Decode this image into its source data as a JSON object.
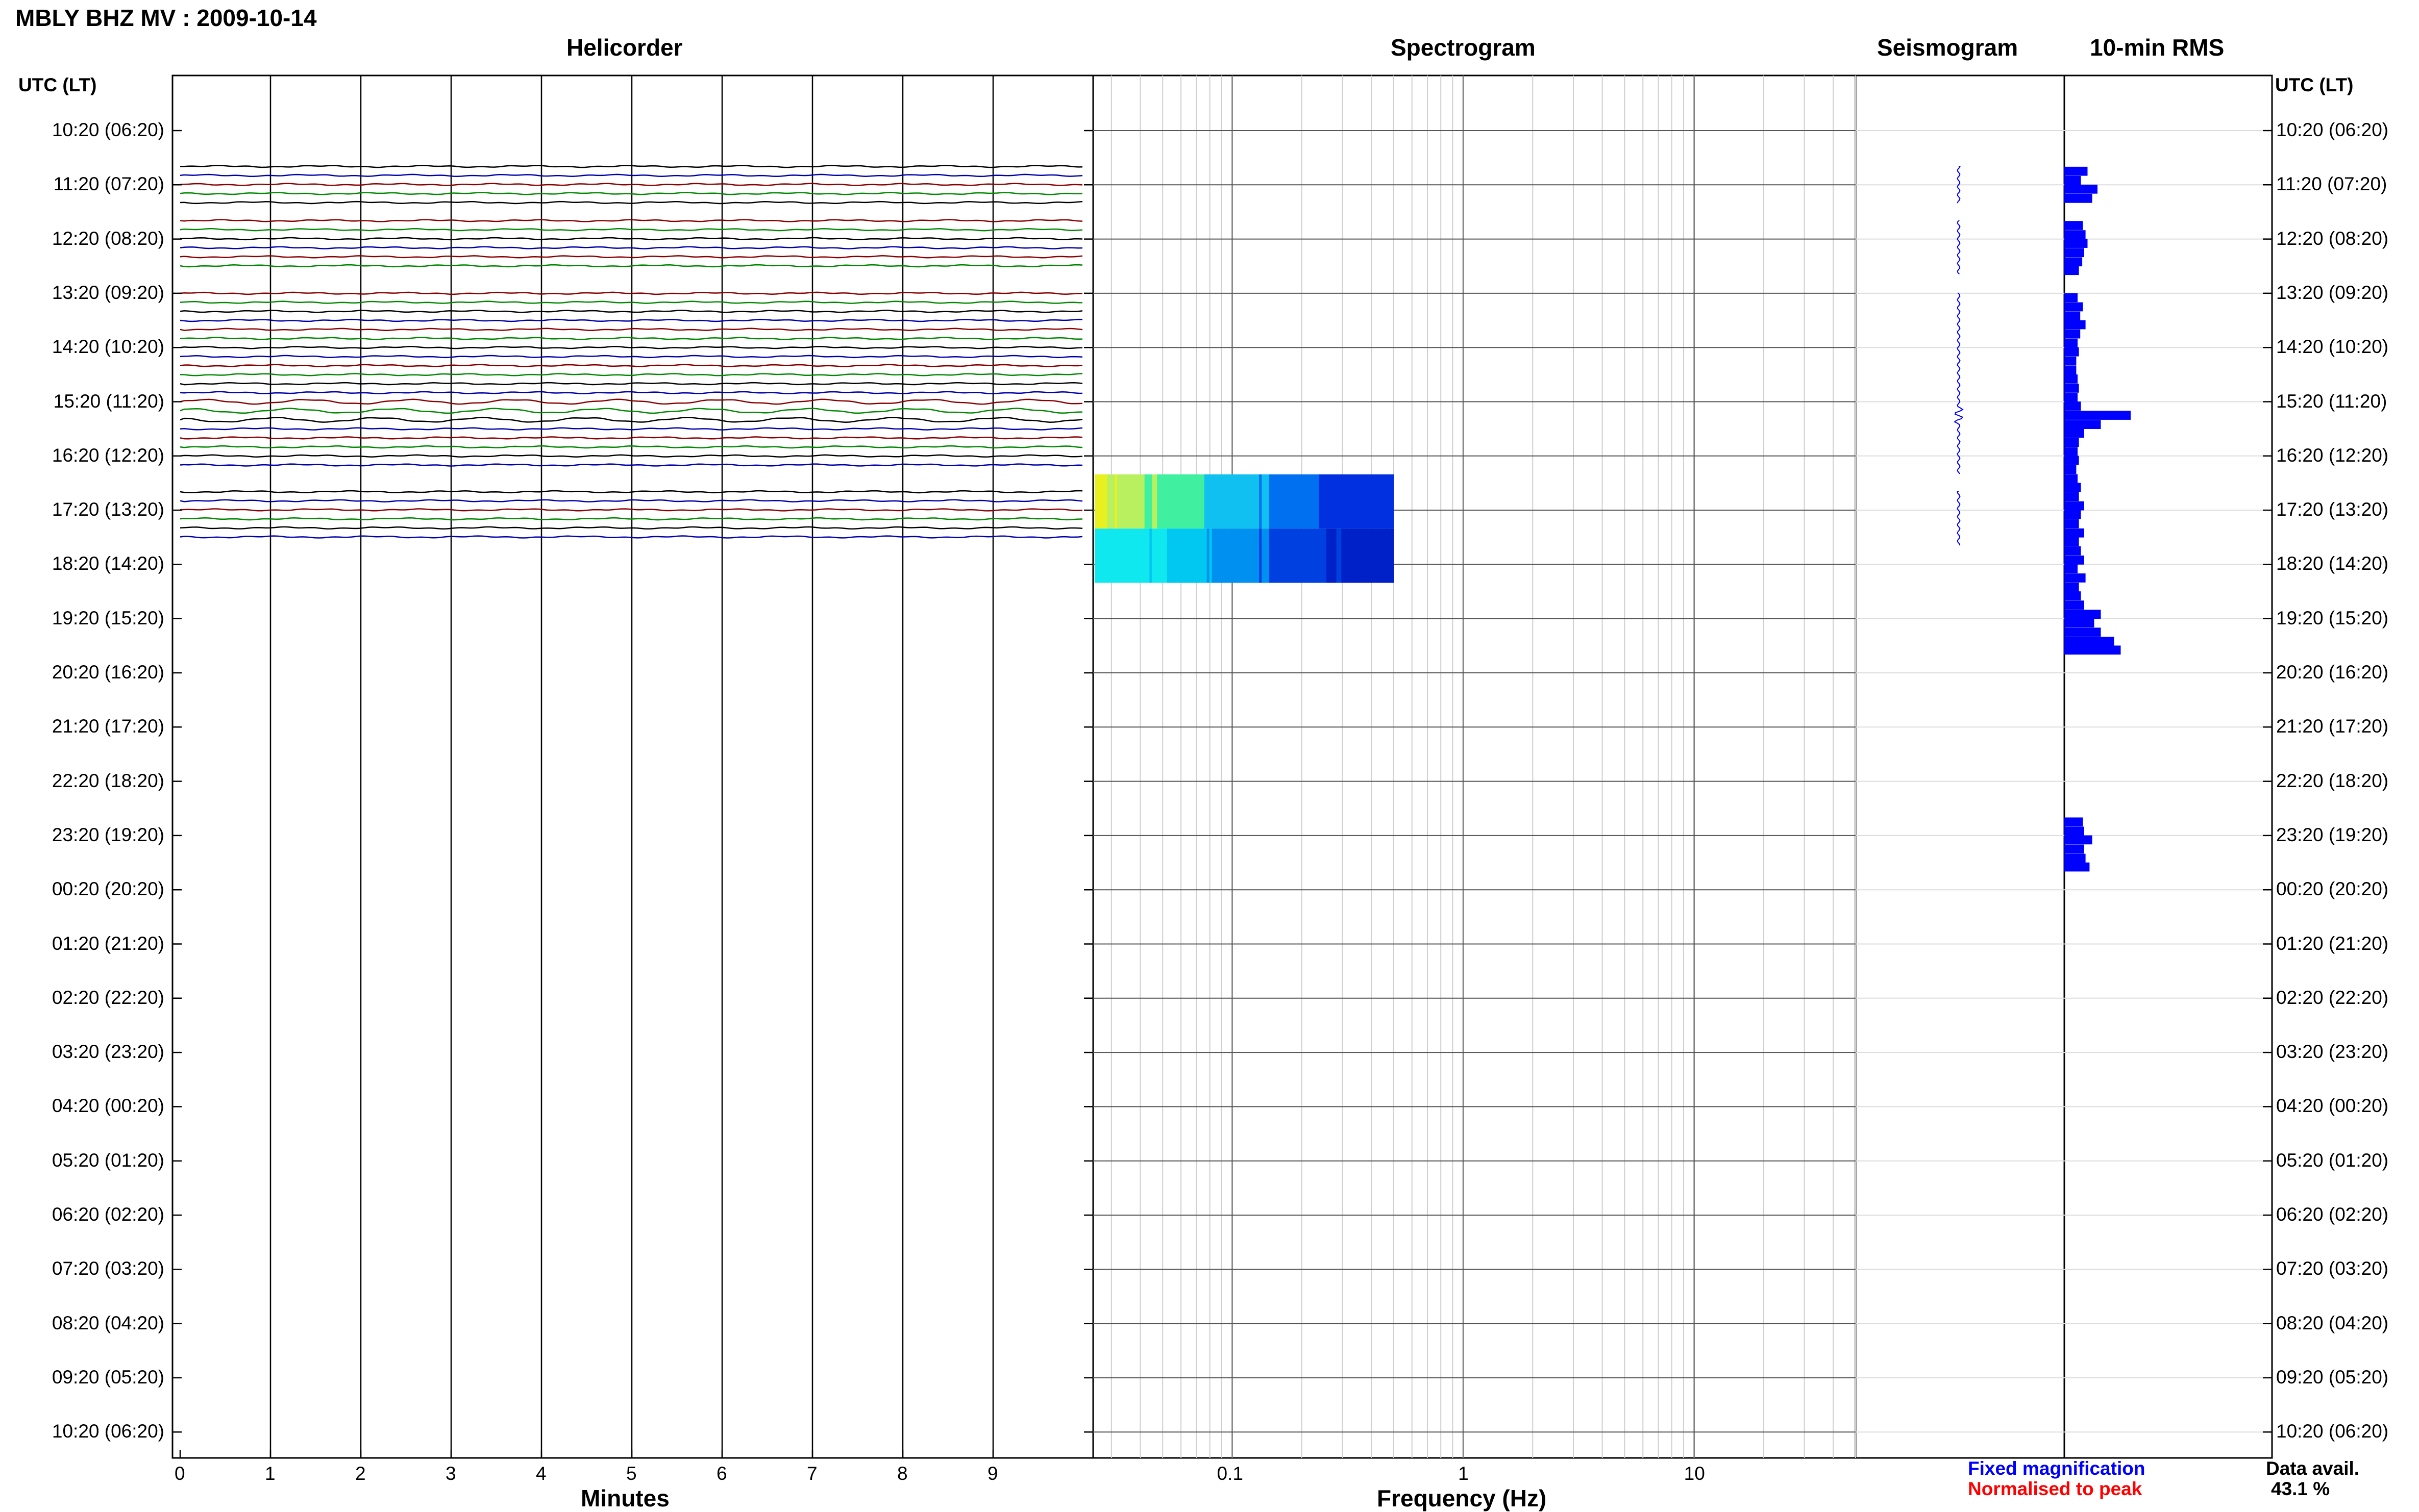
{
  "header": {
    "title": "MBLY BHZ MV : 2009-10-14",
    "panel_titles": {
      "helicorder": "Helicorder",
      "spectrogram": "Spectrogram",
      "seismogram": "Seismogram",
      "rms": "10-min RMS"
    },
    "left_axis_label": "UTC (LT)",
    "right_axis_label": "UTC (LT)"
  },
  "footer": {
    "helicorder_xlabel": "Minutes",
    "spectrogram_xlabel": "Frequency (Hz)",
    "legend_fixed": "Fixed magnification",
    "legend_normalised": "Normalised to peak",
    "data_avail_label": "Data avail.",
    "data_avail_value": "43.1 %"
  },
  "colors": {
    "fixed_magnification": "#0000ff",
    "normalised_to_peak": "#ff0000",
    "trace_colors": [
      "#000000",
      "#0000aa",
      "#880000",
      "#008800"
    ],
    "rms_bar": "#0000ff"
  },
  "chart_data": {
    "type": "helicorder",
    "time_labels": [
      "10:20 (06:20)",
      "11:20 (07:20)",
      "12:20 (08:20)",
      "13:20 (09:20)",
      "14:20 (10:20)",
      "15:20 (11:20)",
      "16:20 (12:20)",
      "17:20 (13:20)",
      "18:20 (14:20)",
      "19:20 (15:20)",
      "20:20 (16:20)",
      "21:20 (17:20)",
      "22:20 (18:20)",
      "23:20 (19:20)",
      "00:20 (20:20)",
      "01:20 (21:20)",
      "02:20 (22:20)",
      "03:20 (23:20)",
      "04:20 (00:20)",
      "05:20 (01:20)",
      "06:20 (02:20)",
      "07:20 (03:20)",
      "08:20 (04:20)",
      "09:20 (05:20)",
      "10:20 (06:20)"
    ],
    "helicorder_xticks": [
      "0",
      "1",
      "2",
      "3",
      "4",
      "5",
      "6",
      "7",
      "8",
      "9"
    ],
    "helicorder_xrange_min": [
      0,
      10
    ],
    "spectrogram_xticks": [
      "0.1",
      "1",
      "10"
    ],
    "spectrogram_xrange_hz": [
      0.025,
      50
    ],
    "spectrogram_xscale": "log",
    "data_segments_hours": [
      [
        0.66,
        1.34
      ],
      [
        1.66,
        2.66
      ],
      [
        3.0,
        6.34
      ],
      [
        6.66,
        7.66
      ]
    ],
    "spectrogram_blocks": [
      {
        "start_hour": 6.34,
        "end_hour": 7.34,
        "level": "high"
      },
      {
        "start_hour": 7.34,
        "end_hour": 8.34,
        "level": "medium"
      }
    ],
    "rms_series": {
      "unit": "relative",
      "bins": [
        {
          "hour": 0.75,
          "value": 0.35
        },
        {
          "hour": 0.92,
          "value": 0.25
        },
        {
          "hour": 1.08,
          "value": 0.5
        },
        {
          "hour": 1.25,
          "value": 0.42
        },
        {
          "hour": 1.75,
          "value": 0.28
        },
        {
          "hour": 1.92,
          "value": 0.32
        },
        {
          "hour": 2.08,
          "value": 0.35
        },
        {
          "hour": 2.25,
          "value": 0.3
        },
        {
          "hour": 2.42,
          "value": 0.27
        },
        {
          "hour": 2.58,
          "value": 0.22
        },
        {
          "hour": 3.08,
          "value": 0.2
        },
        {
          "hour": 3.25,
          "value": 0.28
        },
        {
          "hour": 3.42,
          "value": 0.24
        },
        {
          "hour": 3.58,
          "value": 0.32
        },
        {
          "hour": 3.75,
          "value": 0.24
        },
        {
          "hour": 3.92,
          "value": 0.2
        },
        {
          "hour": 4.08,
          "value": 0.22
        },
        {
          "hour": 4.25,
          "value": 0.18
        },
        {
          "hour": 4.42,
          "value": 0.18
        },
        {
          "hour": 4.58,
          "value": 0.2
        },
        {
          "hour": 4.75,
          "value": 0.22
        },
        {
          "hour": 4.92,
          "value": 0.2
        },
        {
          "hour": 5.08,
          "value": 0.25
        },
        {
          "hour": 5.25,
          "value": 1.0
        },
        {
          "hour": 5.42,
          "value": 0.55
        },
        {
          "hour": 5.58,
          "value": 0.3
        },
        {
          "hour": 5.75,
          "value": 0.22
        },
        {
          "hour": 5.92,
          "value": 0.2
        },
        {
          "hour": 6.08,
          "value": 0.22
        },
        {
          "hour": 6.25,
          "value": 0.18
        },
        {
          "hour": 6.42,
          "value": 0.2
        },
        {
          "hour": 6.58,
          "value": 0.25
        },
        {
          "hour": 6.75,
          "value": 0.22
        },
        {
          "hour": 6.92,
          "value": 0.3
        },
        {
          "hour": 7.08,
          "value": 0.25
        },
        {
          "hour": 7.25,
          "value": 0.22
        },
        {
          "hour": 7.42,
          "value": 0.3
        },
        {
          "hour": 7.58,
          "value": 0.22
        },
        {
          "hour": 7.75,
          "value": 0.25
        },
        {
          "hour": 7.92,
          "value": 0.3
        },
        {
          "hour": 8.08,
          "value": 0.2
        },
        {
          "hour": 8.25,
          "value": 0.32
        },
        {
          "hour": 8.42,
          "value": 0.22
        },
        {
          "hour": 8.58,
          "value": 0.25
        },
        {
          "hour": 8.75,
          "value": 0.3
        },
        {
          "hour": 8.92,
          "value": 0.55
        },
        {
          "hour": 9.08,
          "value": 0.45
        },
        {
          "hour": 9.25,
          "value": 0.55
        },
        {
          "hour": 9.42,
          "value": 0.75
        },
        {
          "hour": 9.58,
          "value": 0.85
        },
        {
          "hour": 12.75,
          "value": 0.28
        },
        {
          "hour": 12.92,
          "value": 0.3
        },
        {
          "hour": 13.08,
          "value": 0.42
        },
        {
          "hour": 13.25,
          "value": 0.3
        },
        {
          "hour": 13.42,
          "value": 0.32
        },
        {
          "hour": 13.58,
          "value": 0.38
        }
      ]
    }
  }
}
